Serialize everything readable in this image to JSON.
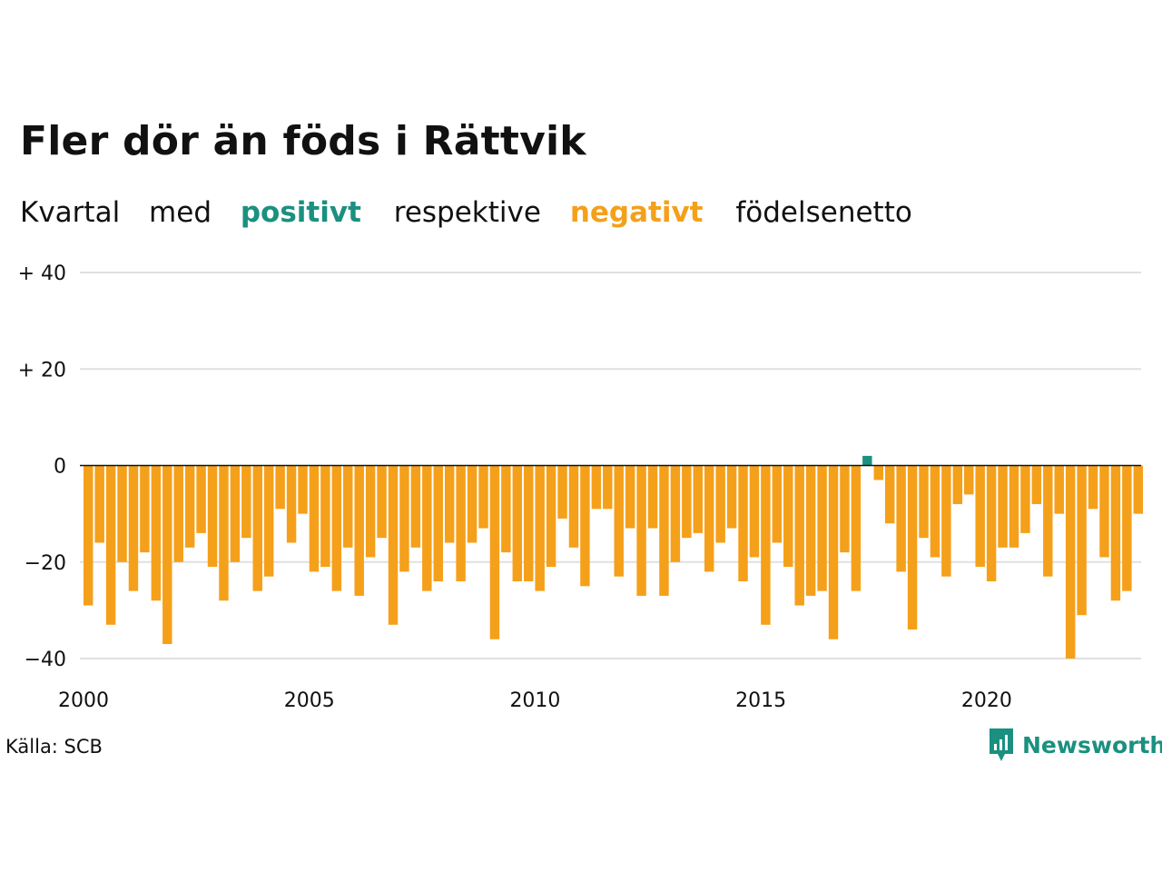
{
  "title": "Fler dör än föds i Rättvik",
  "subtitle": {
    "part1": "Kvartal",
    "part2": "med",
    "positive_word": "positivt",
    "part3": "respektive",
    "negative_word": "negativt",
    "part4": "födelsenetto"
  },
  "source": "Källa: SCB",
  "brand": "Newsworthy",
  "colors": {
    "positive": "#1b9080",
    "negative": "#f5a01a",
    "grid": "#e0e0e0",
    "zero_line": "#111111",
    "text": "#111111"
  },
  "chart_data": {
    "type": "bar",
    "ylim": [
      -40,
      40
    ],
    "yticks": [
      {
        "value": 40,
        "label": "+ 40"
      },
      {
        "value": 20,
        "label": "+ 20"
      },
      {
        "value": 0,
        "label": "0"
      },
      {
        "value": -20,
        "label": "−20"
      },
      {
        "value": -40,
        "label": "−40"
      }
    ],
    "x_tick_labels": [
      "2000",
      "2005",
      "2010",
      "2015",
      "2020"
    ],
    "start": "2000 Q1",
    "end": "2023 Q2",
    "values": [
      -29,
      -16,
      -33,
      -20,
      -26,
      -18,
      -28,
      -37,
      -20,
      -17,
      -14,
      -21,
      -28,
      -20,
      -15,
      -26,
      -23,
      -9,
      -16,
      -10,
      -22,
      -21,
      -26,
      -17,
      -27,
      -19,
      -15,
      -33,
      -22,
      -17,
      -26,
      -24,
      -16,
      -24,
      -16,
      -13,
      -36,
      -18,
      -24,
      -24,
      -26,
      -21,
      -11,
      -17,
      -25,
      -9,
      -9,
      -23,
      -13,
      -27,
      -13,
      -27,
      -20,
      -15,
      -14,
      -22,
      -16,
      -13,
      -24,
      -19,
      -33,
      -16,
      -21,
      -29,
      -27,
      -26,
      -36,
      -18,
      -26,
      2,
      -3,
      -12,
      -22,
      -34,
      -15,
      -19,
      -23,
      -8,
      -6,
      -21,
      -24,
      -17,
      -17,
      -14,
      -8,
      -23,
      -10,
      -40,
      -31,
      -9,
      -19,
      -28,
      -26,
      -10
    ]
  }
}
